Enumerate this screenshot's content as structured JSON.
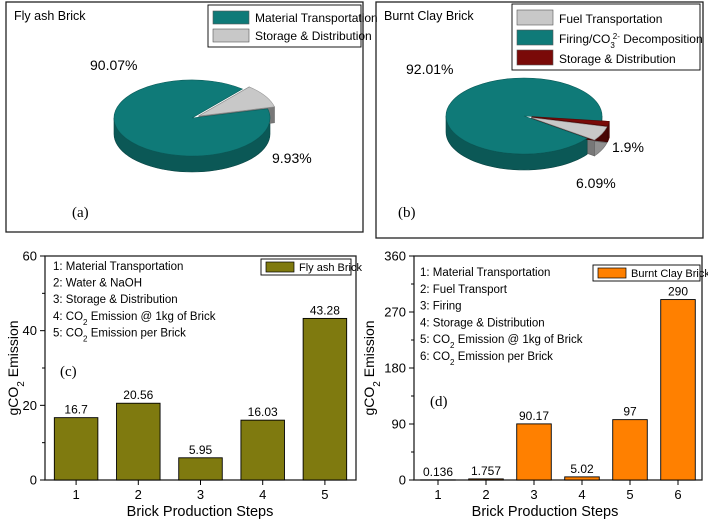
{
  "chart_data": [
    {
      "id": "a",
      "type": "pie",
      "title": "Fly ash Brick",
      "panel_label": "(a)",
      "labels": [
        "Material Transportation",
        "Storage & Distribution"
      ],
      "values": [
        90.07,
        9.93
      ],
      "value_labels": [
        "90.07%",
        "9.93%"
      ],
      "colors": [
        "#0f7a78",
        "#c8c8c8"
      ],
      "legend_position": "top-right"
    },
    {
      "id": "b",
      "type": "pie",
      "title": "Burnt Clay Brick",
      "panel_label": "(b)",
      "labels": [
        "Fuel Transportation",
        "Firing/CO3 2- Decomposition",
        "Storage & Distribution"
      ],
      "legend_main": [
        "Fuel Transportation",
        "Firing/CO",
        " Decomposition",
        "Storage & Distribution"
      ],
      "legend_sub": "3",
      "legend_sup": "2-",
      "values": [
        6.09,
        92.01,
        1.9
      ],
      "value_labels": [
        "6.09%",
        "92.01%",
        "1.9%"
      ],
      "colors": [
        "#c8c8c8",
        "#0f7a78",
        "#7a0a08"
      ],
      "legend_position": "top-right"
    },
    {
      "id": "c",
      "type": "bar",
      "panel_label": "(c)",
      "series_name": "Fly ash Brick",
      "categories": [
        "1",
        "2",
        "3",
        "4",
        "5"
      ],
      "values": [
        16.7,
        20.56,
        5.95,
        16.03,
        43.28
      ],
      "value_labels": [
        "16.7",
        "20.56",
        "5.95",
        "16.03",
        "43.28"
      ],
      "ylim": [
        0,
        60
      ],
      "yticks": [
        "0",
        "20",
        "40",
        "60"
      ],
      "xlabel": "Brick Production Steps",
      "ylabel_main": "gCO",
      "ylabel_sub": "2",
      "ylabel_tail": " Emission",
      "color": "#7f7a0f",
      "notes": [
        {
          "main": "1: Material Transportation",
          "sub": "",
          "tail": ""
        },
        {
          "main": "2: Water & NaOH",
          "sub": "",
          "tail": ""
        },
        {
          "main": "3: Storage & Distribution",
          "sub": "",
          "tail": ""
        },
        {
          "main": "4: CO",
          "sub": "2",
          "tail": " Emission @ 1kg of Brick"
        },
        {
          "main": "5: CO",
          "sub": "2",
          "tail": " Emission per Brick"
        }
      ]
    },
    {
      "id": "d",
      "type": "bar",
      "panel_label": "(d)",
      "series_name": "Burnt Clay Brick",
      "categories": [
        "1",
        "2",
        "3",
        "4",
        "5",
        "6"
      ],
      "values": [
        0.136,
        1.757,
        90.17,
        5.02,
        97,
        290
      ],
      "value_labels": [
        "0.136",
        "1.757",
        "90.17",
        "5.02",
        "97",
        "290"
      ],
      "ylim": [
        0,
        360
      ],
      "yticks": [
        "0",
        "90",
        "180",
        "270",
        "360"
      ],
      "xlabel": "Brick Production Steps",
      "ylabel_main": "gCO",
      "ylabel_sub": "2",
      "ylabel_tail": " Emission",
      "color": "#ff8000",
      "notes": [
        {
          "main": "1: Material Transportation",
          "sub": "",
          "tail": ""
        },
        {
          "main": "2: Fuel Transport",
          "sub": "",
          "tail": ""
        },
        {
          "main": "3: Firing",
          "sub": "",
          "tail": ""
        },
        {
          "main": "4: Storage & Distribution",
          "sub": "",
          "tail": ""
        },
        {
          "main": "5: CO",
          "sub": "2",
          "tail": " Emission @ 1kg of Brick"
        },
        {
          "main": "6: CO",
          "sub": "2",
          "tail": " Emission per Brick"
        }
      ]
    }
  ]
}
